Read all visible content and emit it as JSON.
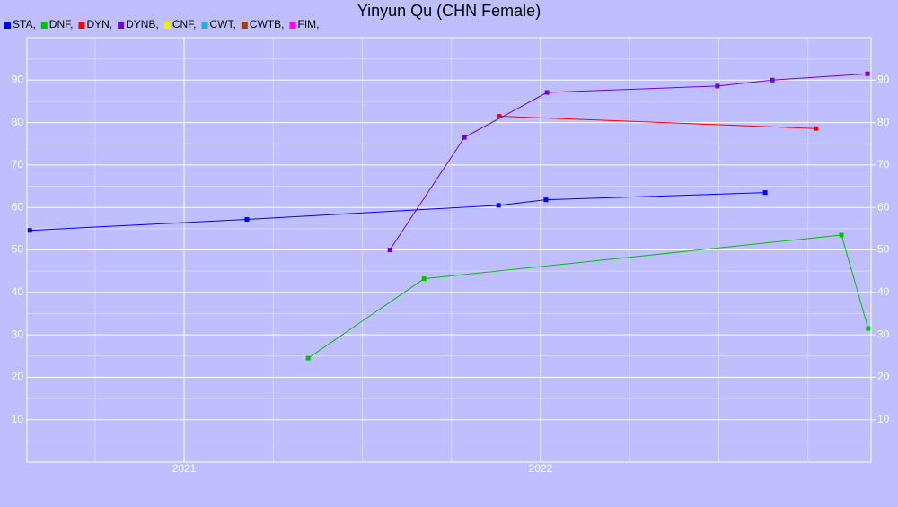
{
  "chart_data": {
    "type": "line",
    "title": "Yinyun Qu (CHN Female)",
    "xlim": [
      2020.559,
      2022.927
    ],
    "xticks": [
      2021,
      2022
    ],
    "ylim": [
      0,
      100
    ],
    "yticks": [
      10,
      20,
      30,
      40,
      50,
      60,
      70,
      80,
      90
    ],
    "grid": true,
    "legend": "top-left",
    "series": [
      {
        "name": "STA,",
        "color": "#0000ff",
        "x": [
          2020.567,
          2021.176,
          2021.882,
          2022.015,
          2022.63
        ],
        "values": [
          54.6,
          57.2,
          60.5,
          61.8,
          63.5
        ]
      },
      {
        "name": "DNF,",
        "color": "#00c000",
        "x": [
          2021.348,
          2021.673,
          2022.844,
          2022.919
        ],
        "values": [
          24.5,
          43.2,
          53.5,
          31.5
        ]
      },
      {
        "name": "DYN,",
        "color": "#ff0000",
        "x": [
          2021.884,
          2022.773
        ],
        "values": [
          81.5,
          78.6
        ]
      },
      {
        "name": "DYNB,",
        "color": "#7000e0",
        "x": [
          2021.577,
          2021.786,
          2022.018,
          2022.496,
          2022.65,
          2022.917
        ],
        "values": [
          50.0,
          76.5,
          87.1,
          88.6,
          90.0,
          91.5
        ]
      },
      {
        "name": "CNF,",
        "color": "#f0f000",
        "x": [],
        "values": []
      },
      {
        "name": "CWT,",
        "color": "#20b0e0",
        "x": [],
        "values": []
      },
      {
        "name": "CWTB,",
        "color": "#a04000",
        "x": [],
        "values": []
      },
      {
        "name": "FIM,",
        "color": "#ff00ff",
        "x": [],
        "values": []
      }
    ]
  }
}
